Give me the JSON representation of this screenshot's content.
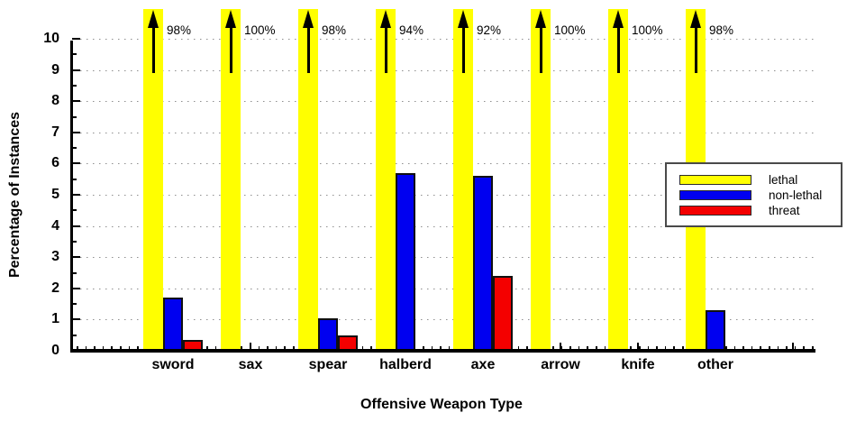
{
  "axes": {
    "ylabel": "Percentage of Instances",
    "xlabel": "Offensive Weapon Type",
    "y_ticks": [
      "0",
      "1",
      "2",
      "3",
      "4",
      "5",
      "6",
      "7",
      "8",
      "9",
      "10"
    ]
  },
  "legend": {
    "items": [
      {
        "label": "lethal",
        "color": "#ffff00"
      },
      {
        "label": "non-lethal",
        "color": "#0000f0"
      },
      {
        "label": "threat",
        "color": "#f40000"
      }
    ]
  },
  "chart_data": {
    "type": "bar",
    "title": "",
    "xlabel": "Offensive Weapon Type",
    "ylabel": "Percentage of Instances",
    "ylim": [
      0,
      10
    ],
    "grid": "dotted horizontal gridlines at each integer",
    "legend_position": "right-middle",
    "categories": [
      "sword",
      "sax",
      "spear",
      "halberd",
      "axe",
      "arrow",
      "knife",
      "other"
    ],
    "series": [
      {
        "name": "lethal",
        "color": "#ffff00",
        "off_scale": true,
        "values": [
          98,
          100,
          98,
          94,
          92,
          100,
          100,
          98
        ],
        "labels": [
          "98%",
          "100%",
          "98%",
          "94%",
          "92%",
          "100%",
          "100%",
          "98%"
        ],
        "note": "bars exceed the 0-10 axis; drawn full height with black up-arrows and % labels"
      },
      {
        "name": "non-lethal",
        "color": "#0000f0",
        "values": [
          1.7,
          0,
          1.05,
          5.7,
          5.6,
          0,
          0,
          1.3
        ]
      },
      {
        "name": "threat",
        "color": "#f40000",
        "values": [
          0.35,
          0,
          0.5,
          0,
          2.4,
          0,
          0,
          0
        ]
      }
    ]
  }
}
